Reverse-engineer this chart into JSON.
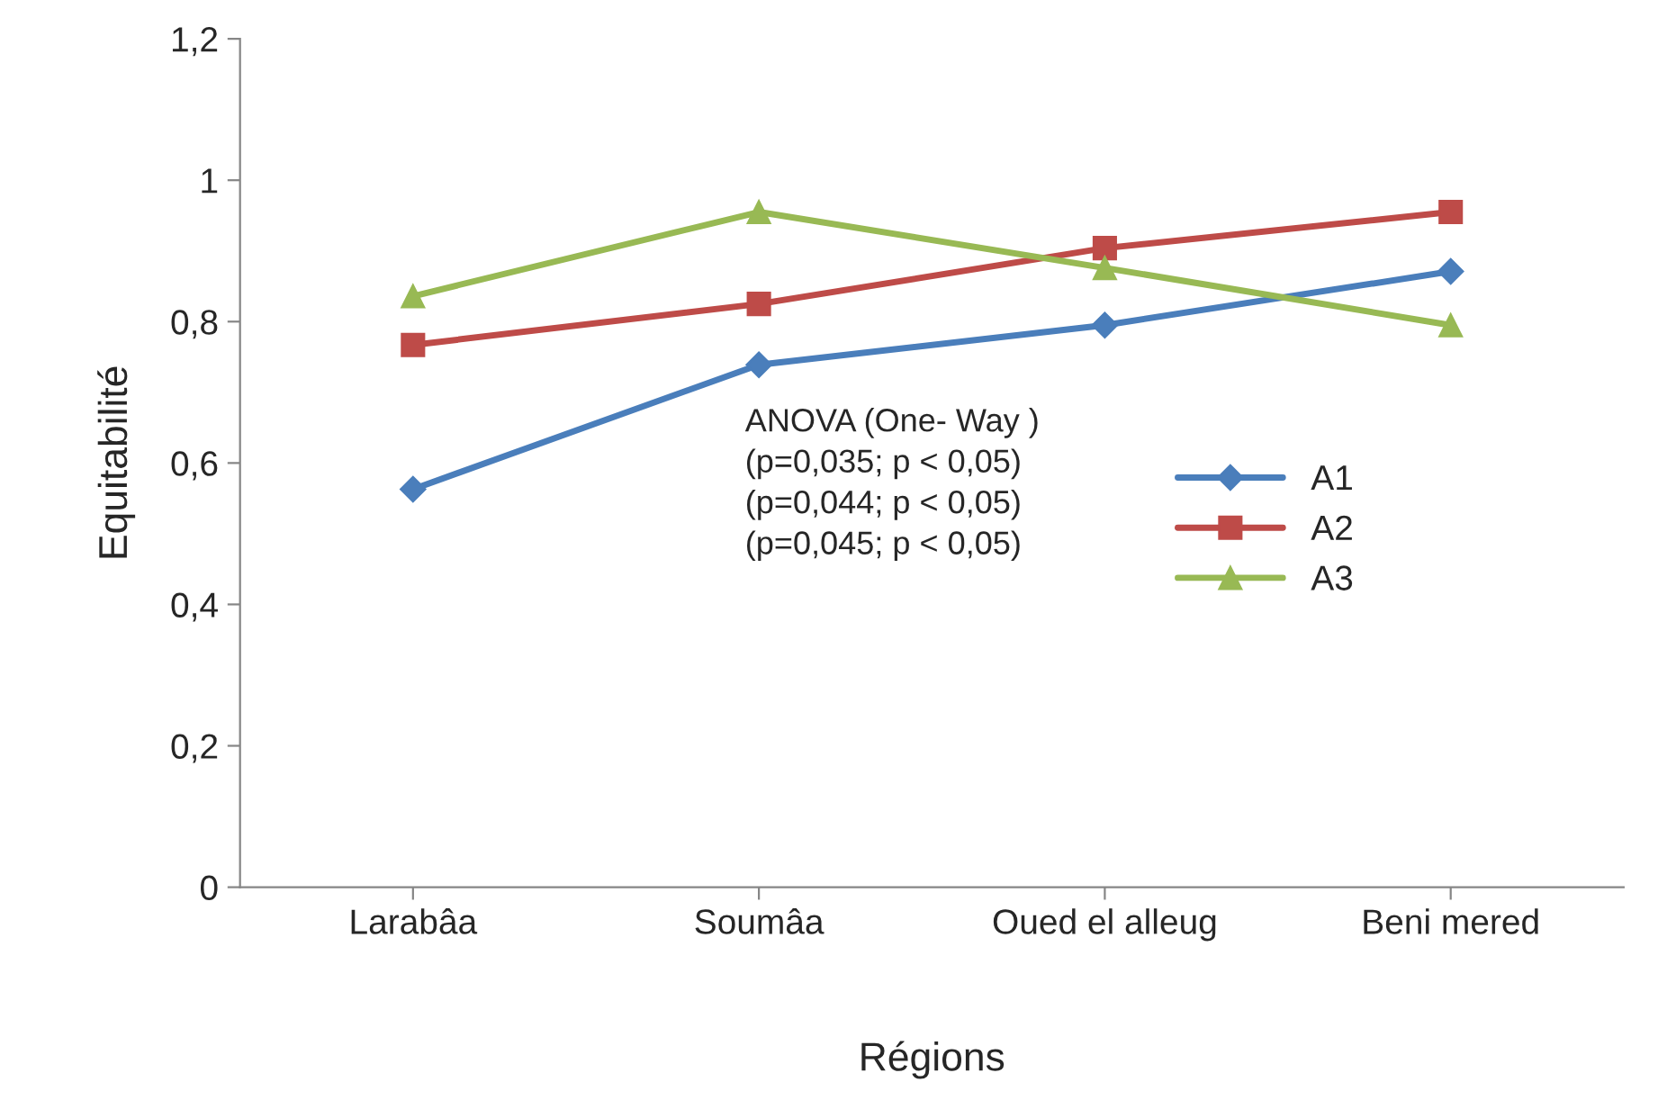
{
  "chart_data": {
    "type": "line",
    "xlabel": "Régions",
    "ylabel": "Equitabilité",
    "categories": [
      "Larabâa",
      "Soumâa",
      "Oued el alleug",
      "Beni mered"
    ],
    "series": [
      {
        "name": "A1",
        "color": "#4a7ebb",
        "marker": "diamond",
        "values": [
          0.563,
          0.739,
          0.795,
          0.871
        ]
      },
      {
        "name": "A2",
        "color": "#be4b48",
        "marker": "square",
        "values": [
          0.767,
          0.825,
          0.904,
          0.955
        ]
      },
      {
        "name": "A3",
        "color": "#98b954",
        "marker": "triangle",
        "values": [
          0.836,
          0.955,
          0.876,
          0.795
        ]
      }
    ],
    "ylim": [
      0,
      1.2
    ],
    "yticks": [
      0,
      {
        "value": 0.2,
        "label": "0,2"
      },
      {
        "value": 0.4,
        "label": "0,4"
      },
      {
        "value": 0.6,
        "label": "0,6"
      },
      {
        "value": 0.8,
        "label": "0,8"
      },
      1,
      {
        "value": 1.2,
        "label": "1,2"
      }
    ],
    "annotations": [
      "ANOVA (One- Way )\n(p=0,035; p < 0,05)\n(p=0,044; p < 0,05)\n(p=0,045; p < 0,05)"
    ],
    "legend": "right",
    "grid": false,
    "line_style": "solid"
  }
}
